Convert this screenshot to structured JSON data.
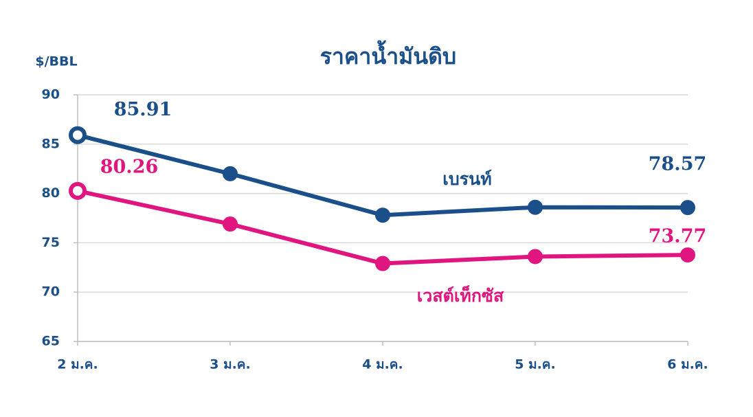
{
  "chart_data": {
    "type": "line",
    "title": "ราคาน้ำมันดิบ",
    "y_label": "$/BBL",
    "categories": [
      "2 ม.ค.",
      "3 ม.ค.",
      "4 ม.ค.",
      "5 ม.ค.",
      "6 ม.ค."
    ],
    "series": [
      {
        "name": "เบรนท์",
        "color": "#1b4f8a",
        "values": [
          85.91,
          82.0,
          77.8,
          78.6,
          78.57
        ]
      },
      {
        "name": "เวสต์เท็กซัส",
        "color": "#e0157f",
        "values": [
          80.26,
          76.9,
          72.9,
          73.6,
          73.77
        ]
      }
    ],
    "ylim": [
      65,
      90
    ],
    "yticks": [
      65,
      70,
      75,
      80,
      85,
      90
    ],
    "grid": true
  }
}
